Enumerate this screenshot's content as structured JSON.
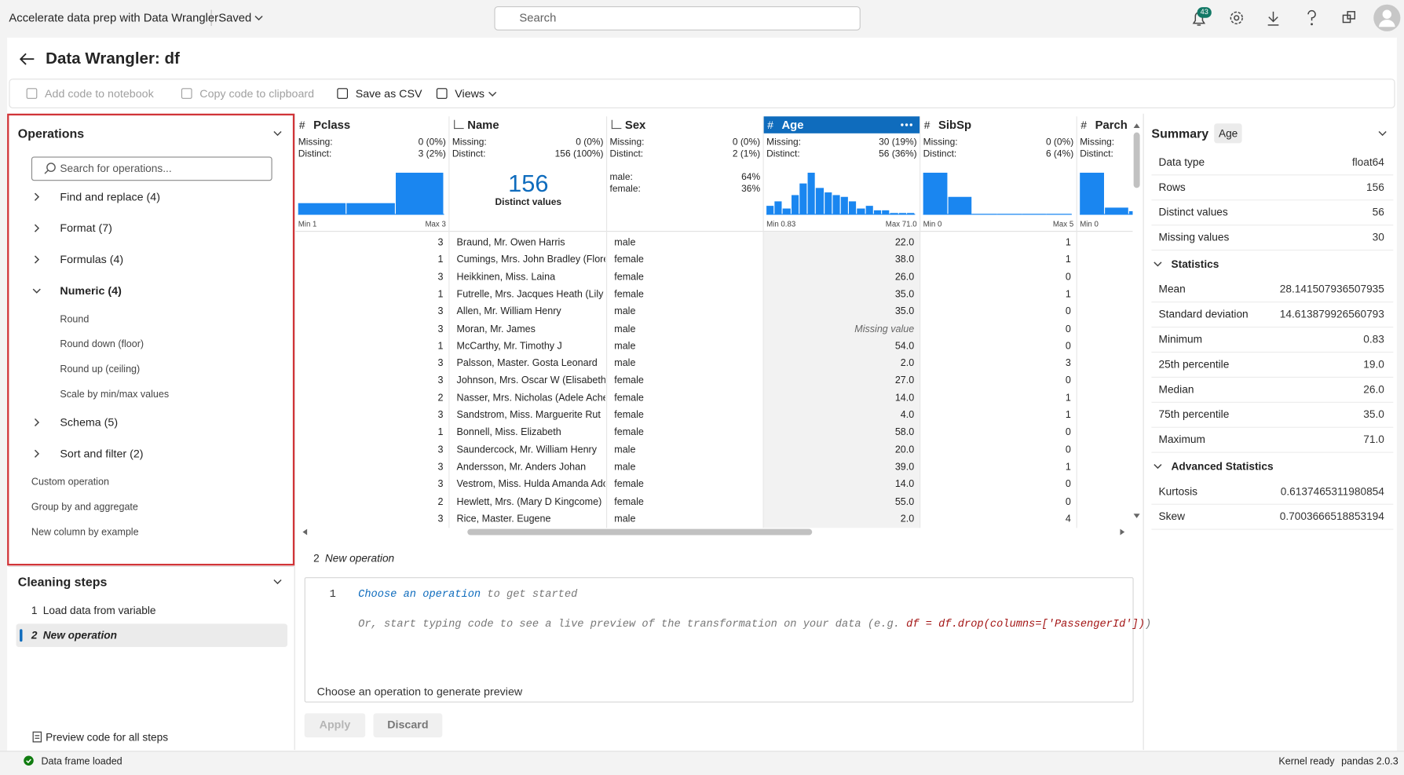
{
  "topbar": {
    "title": "Accelerate data prep with Data Wrangler",
    "status": "Saved",
    "search": "Search",
    "notifications": "43"
  },
  "header": {
    "title": "Data Wrangler: df"
  },
  "toolbar": [
    {
      "label": "Add code to notebook",
      "enabled": false
    },
    {
      "label": "Copy code to clipboard",
      "enabled": false
    },
    {
      "label": "Save as CSV",
      "enabled": true
    },
    {
      "label": "Views",
      "enabled": true
    }
  ],
  "operations": {
    "title": "Operations",
    "search_placeholder": "Search for operations...",
    "groups": [
      {
        "label": "Find and replace (4)"
      },
      {
        "label": "Format (7)"
      },
      {
        "label": "Formulas (4)"
      },
      {
        "label": "Numeric (4)",
        "expanded": true,
        "items": [
          "Round",
          "Round down (floor)",
          "Round up (ceiling)",
          "Scale by min/max values"
        ]
      },
      {
        "label": "Schema (5)"
      },
      {
        "label": "Sort and filter (2)"
      }
    ],
    "extra": [
      "Custom operation",
      "Group by and aggregate",
      "New column by example"
    ]
  },
  "cleaning_steps": {
    "title": "Cleaning steps",
    "steps": [
      {
        "number": "1",
        "label": "Load data from variable"
      },
      {
        "number": "2",
        "label": "New operation",
        "active": true
      }
    ],
    "preview_link": "Preview code for all steps"
  },
  "grid": {
    "missing_label": "Missing:",
    "distinct_label": "Distinct:",
    "missing_value_label": "Missing value",
    "columns": [
      {
        "name": "Pclass",
        "type_icon": "#",
        "missing": "0 (0%)",
        "distinct": "3 (2%)",
        "histogram": [
          27,
          27,
          96
        ],
        "min": "Min 1",
        "max": "Max 3"
      },
      {
        "name": "Name",
        "missing": "0 (0%)",
        "distinct": "156 (100%)",
        "summary_big": "156",
        "summary_label": "Distinct values"
      },
      {
        "name": "Sex",
        "missing": "0 (0%)",
        "distinct": "2 (1%)",
        "categories": [
          {
            "label": "male:",
            "pct": "64%"
          },
          {
            "label": "female:",
            "pct": "36%"
          }
        ]
      },
      {
        "name": "Age",
        "type_icon": "#",
        "selected": true,
        "missing": "30 (19%)",
        "distinct": "56 (36%)",
        "histogram": [
          4,
          6,
          3,
          9,
          14,
          19,
          12,
          10,
          9,
          8,
          6,
          3,
          4,
          2,
          2,
          1,
          1,
          1
        ],
        "min": "Min 0.83",
        "max": "Max 71.0"
      },
      {
        "name": "SibSp",
        "type_icon": "#",
        "missing": "0 (0%)",
        "distinct": "6 (4%)",
        "histogram": [
          95,
          40,
          3,
          3,
          3,
          2
        ],
        "min": "Min 0",
        "max": "Max 5"
      },
      {
        "name": "Parch",
        "type_icon": "#",
        "histogram": [
          118,
          20,
          10,
          4,
          3,
          1
        ],
        "min": "Min 0"
      }
    ],
    "rows": [
      [
        3,
        "Braund, Mr. Owen Harris",
        "male",
        "22.0",
        1
      ],
      [
        1,
        "Cumings, Mrs. John Bradley (Florenc",
        "female",
        "38.0",
        1
      ],
      [
        3,
        "Heikkinen, Miss. Laina",
        "female",
        "26.0",
        0
      ],
      [
        1,
        "Futrelle, Mrs. Jacques Heath (Lily Ma",
        "female",
        "35.0",
        1
      ],
      [
        3,
        "Allen, Mr. William Henry",
        "male",
        "35.0",
        0
      ],
      [
        3,
        "Moran, Mr. James",
        "male",
        null,
        0
      ],
      [
        1,
        "McCarthy, Mr. Timothy J",
        "male",
        "54.0",
        0
      ],
      [
        3,
        "Palsson, Master. Gosta Leonard",
        "male",
        "2.0",
        3
      ],
      [
        3,
        "Johnson, Mrs. Oscar W (Elisabeth Vil",
        "female",
        "27.0",
        0
      ],
      [
        2,
        "Nasser, Mrs. Nicholas (Adele Achem",
        "female",
        "14.0",
        1
      ],
      [
        3,
        "Sandstrom, Miss. Marguerite Rut",
        "female",
        "4.0",
        1
      ],
      [
        1,
        "Bonnell, Miss. Elizabeth",
        "female",
        "58.0",
        0
      ],
      [
        3,
        "Saundercock, Mr. William Henry",
        "male",
        "20.0",
        0
      ],
      [
        3,
        "Andersson, Mr. Anders Johan",
        "male",
        "39.0",
        1
      ],
      [
        3,
        "Vestrom, Miss. Hulda Amanda Adolf",
        "female",
        "14.0",
        0
      ],
      [
        2,
        "Hewlett, Mrs. (Mary D Kingcome)",
        "female",
        "55.0",
        0
      ],
      [
        3,
        "Rice, Master. Eugene",
        "male",
        "2.0",
        4
      ]
    ]
  },
  "editor": {
    "step_number": "2",
    "step_title": "New operation",
    "line_number": "1",
    "link": "Choose an operation",
    "line1_rest": " to get started",
    "line2_text": "Or, start typing code to see a live preview of the transformation on your data (e.g. ",
    "line2_code": "df = df.drop(columns=['PassengerId'])",
    "line2_end": ")",
    "preview": "Choose an operation to generate preview",
    "buttons": [
      "Apply",
      "Discard"
    ]
  },
  "summary": {
    "title": "Summary",
    "column": "Age",
    "general": [
      {
        "label": "Data type",
        "value": "float64"
      },
      {
        "label": "Rows",
        "value": "156"
      },
      {
        "label": "Distinct values",
        "value": "56"
      },
      {
        "label": "Missing values",
        "value": "30"
      }
    ],
    "sections": [
      {
        "title": "Statistics",
        "rows": [
          {
            "label": "Mean",
            "value": "28.141507936507935"
          },
          {
            "label": "Standard deviation",
            "value": "14.613879926560793"
          },
          {
            "label": "Minimum",
            "value": "0.83"
          },
          {
            "label": "25th percentile",
            "value": "19.0"
          },
          {
            "label": "Median",
            "value": "26.0"
          },
          {
            "label": "75th percentile",
            "value": "35.0"
          },
          {
            "label": "Maximum",
            "value": "71.0"
          }
        ]
      },
      {
        "title": "Advanced Statistics",
        "rows": [
          {
            "label": "Kurtosis",
            "value": "0.6137465311980854"
          },
          {
            "label": "Skew",
            "value": "0.7003666518853194"
          }
        ]
      }
    ]
  },
  "statusbar": {
    "left": "Data frame loaded",
    "kernel": "Kernel ready",
    "version": "pandas 2.0.3"
  }
}
